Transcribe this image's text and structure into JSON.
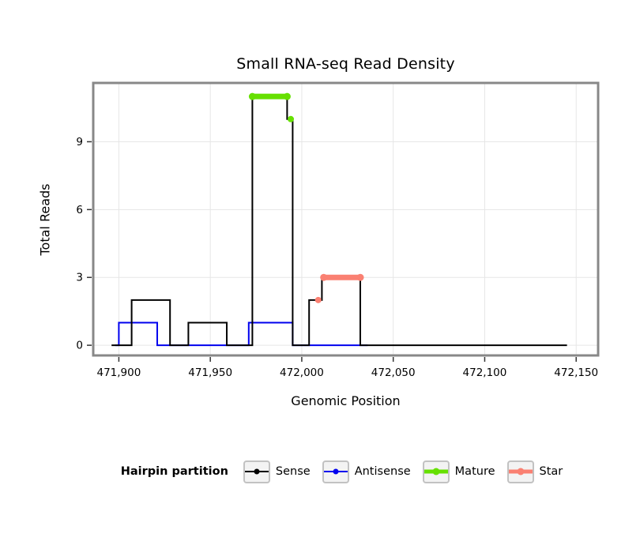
{
  "chart_data": {
    "type": "line",
    "title": "Small RNA-seq Read Density",
    "xlabel": "Genomic Position",
    "ylabel": "Total Reads",
    "xlim": [
      471886,
      472162
    ],
    "ylim": [
      -0.45,
      11.6
    ],
    "grid": true,
    "legend_position": "bottom",
    "x_ticks": [
      {
        "value": 471900,
        "label": "471,900"
      },
      {
        "value": 471950,
        "label": "471,950"
      },
      {
        "value": 472000,
        "label": "472,000"
      },
      {
        "value": 472050,
        "label": "472,050"
      },
      {
        "value": 472100,
        "label": "472,100"
      },
      {
        "value": 472150,
        "label": "472,150"
      }
    ],
    "y_ticks": [
      {
        "value": 0,
        "label": "0"
      },
      {
        "value": 3,
        "label": "3"
      },
      {
        "value": 6,
        "label": "6"
      },
      {
        "value": 9,
        "label": "9"
      }
    ],
    "style": {
      "grid_color": "#e6e6e6",
      "border_color": "#888888",
      "tick_color": "#333333",
      "background": "#ffffff"
    },
    "series": [
      {
        "name": "Antisense",
        "color": "#0000EE",
        "line_width": 2,
        "type": "step-line",
        "vertices": [
          [
            471898,
            0
          ],
          [
            471900,
            0
          ],
          [
            471900,
            1
          ],
          [
            471921,
            1
          ],
          [
            471921,
            0
          ],
          [
            471971,
            0
          ],
          [
            471971,
            1
          ],
          [
            471995,
            1
          ],
          [
            471995,
            0
          ],
          [
            472036,
            0
          ]
        ]
      },
      {
        "name": "Sense",
        "color": "#000000",
        "line_width": 2,
        "type": "step-line",
        "vertices": [
          [
            471896,
            0
          ],
          [
            471907,
            0
          ],
          [
            471907,
            2
          ],
          [
            471928,
            2
          ],
          [
            471928,
            0
          ],
          [
            471938,
            0
          ],
          [
            471938,
            1
          ],
          [
            471959,
            1
          ],
          [
            471959,
            0
          ],
          [
            471973,
            0
          ],
          [
            471973,
            11
          ],
          [
            471992,
            11
          ],
          [
            471992,
            10
          ],
          [
            471995,
            10
          ],
          [
            471995,
            0
          ],
          [
            472004,
            0
          ],
          [
            472004,
            2
          ],
          [
            472011,
            2
          ],
          [
            472011,
            3
          ],
          [
            472032,
            3
          ],
          [
            472032,
            0
          ],
          [
            472145,
            0
          ]
        ]
      },
      {
        "name": "Mature",
        "color": "#66E000",
        "line_width": 7,
        "type": "segments",
        "segments": [
          {
            "x1": 471973,
            "x2": 471992,
            "y": 11
          }
        ],
        "markers": [
          [
            471994,
            10
          ]
        ]
      },
      {
        "name": "Star",
        "color": "#FA8072",
        "line_width": 7,
        "type": "segments",
        "segments": [
          {
            "x1": 472012,
            "x2": 472032,
            "y": 3
          }
        ],
        "markers": [
          [
            472009,
            2
          ]
        ]
      }
    ]
  },
  "legend": {
    "title": "Hairpin partition",
    "items": [
      {
        "label": "Sense",
        "color": "#000000",
        "line_width": 2,
        "dot_size": 7
      },
      {
        "label": "Antisense",
        "color": "#0000EE",
        "line_width": 2,
        "dot_size": 7
      },
      {
        "label": "Mature",
        "color": "#66E000",
        "line_width": 5,
        "dot_size": 9
      },
      {
        "label": "Star",
        "color": "#FA8072",
        "line_width": 5,
        "dot_size": 9
      }
    ]
  }
}
